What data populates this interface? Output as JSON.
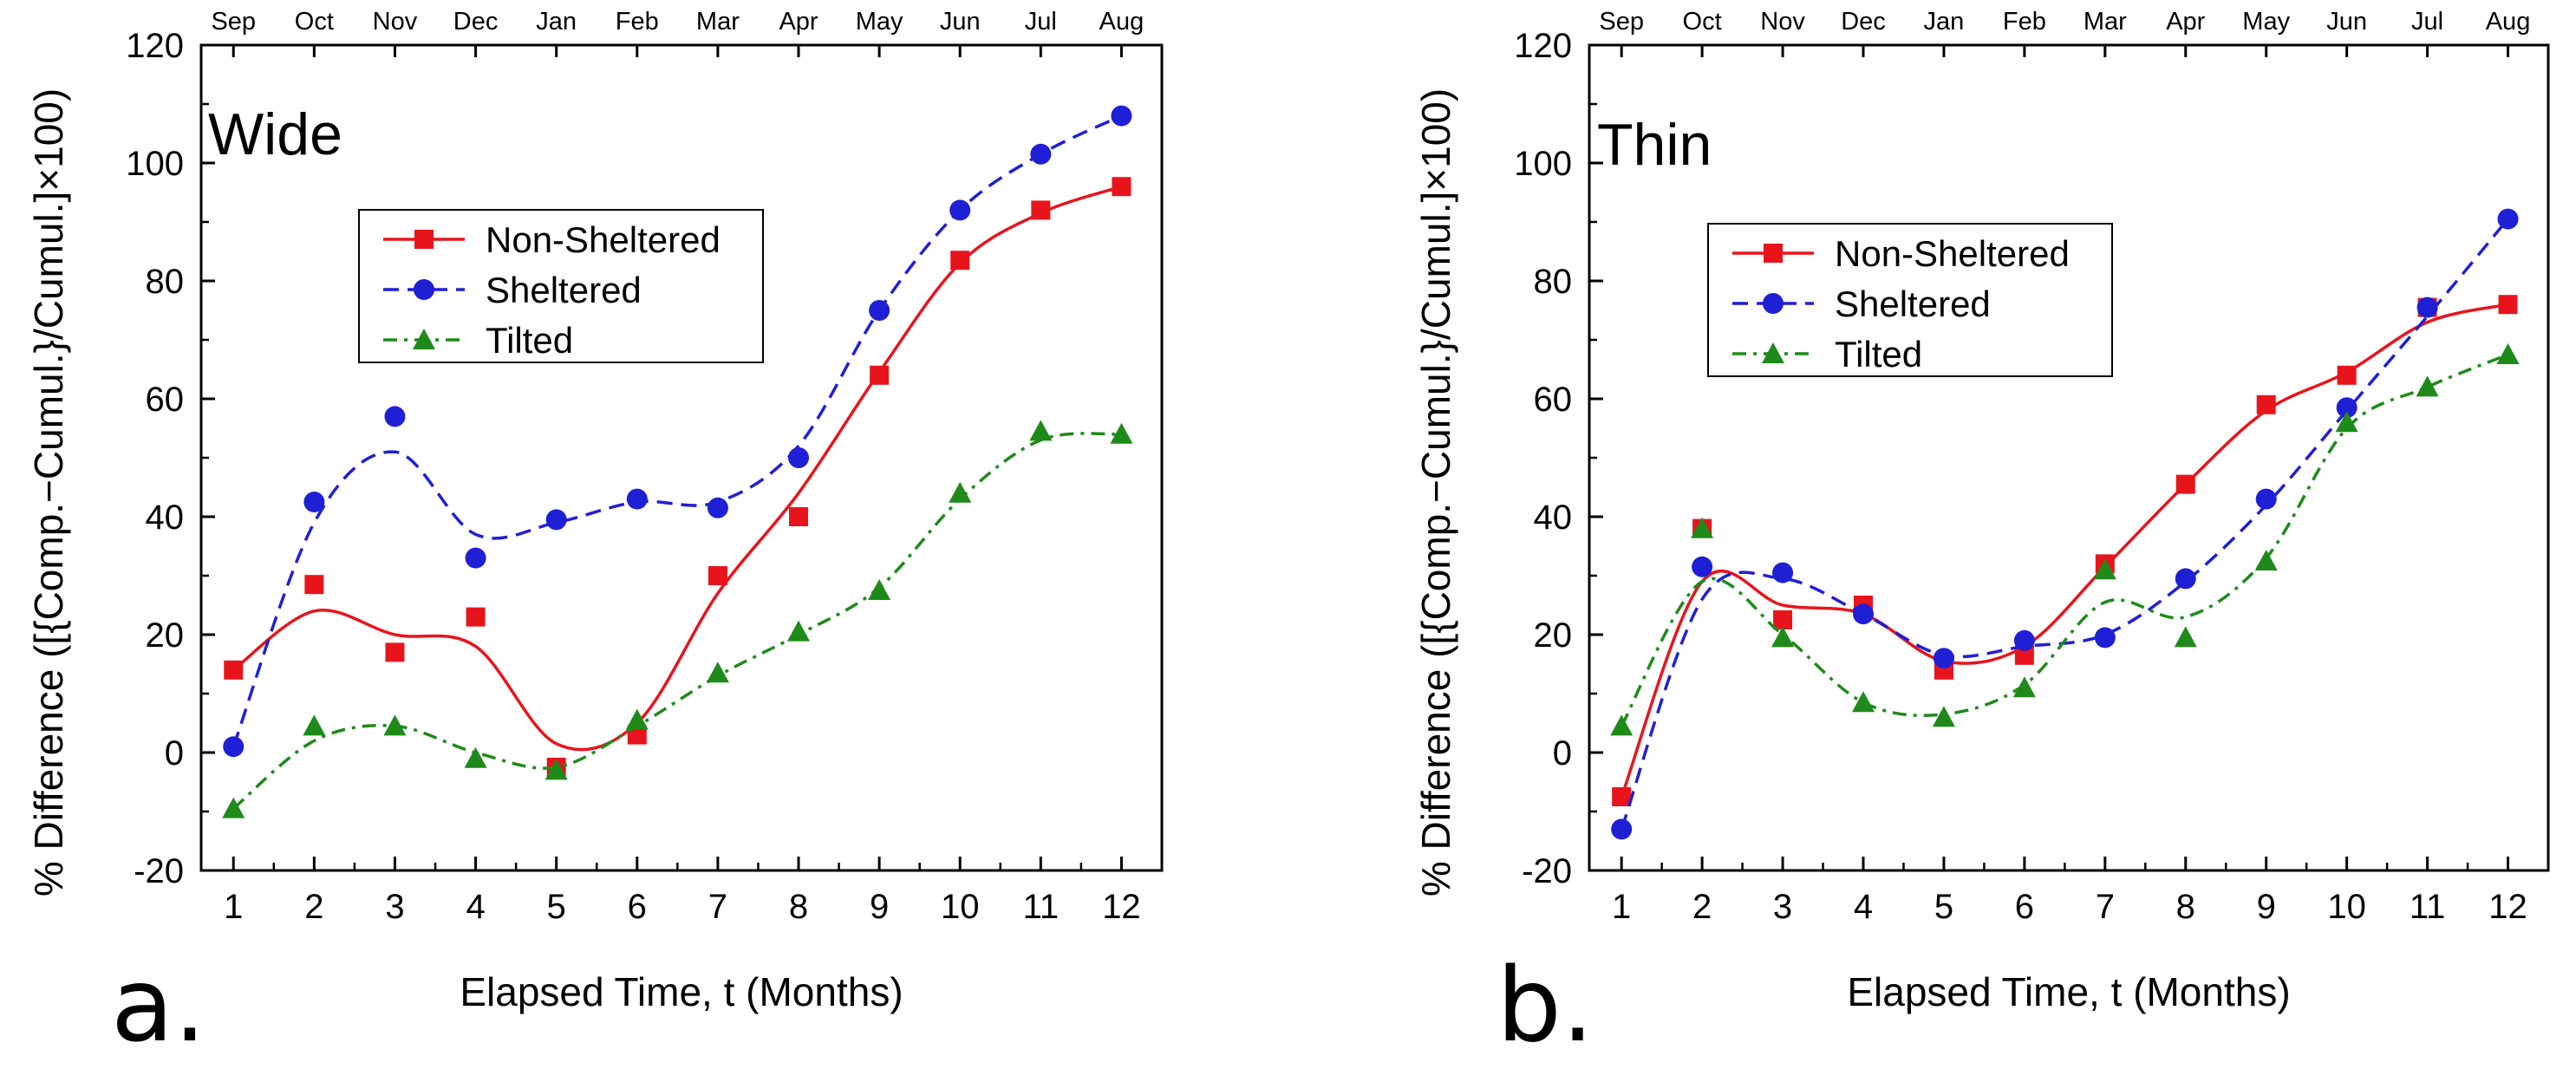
{
  "chart_data": [
    {
      "type": "line",
      "panel_letter": "a.",
      "title": "Wide",
      "xlabel": "Elapsed Time, t (Months)",
      "ylabel": "% Difference ([{Comp.−Cumul.}/Cumul.]×100)",
      "ylim": [
        -20,
        120
      ],
      "xlim": [
        0.6,
        12.5
      ],
      "yticks": [
        -20,
        0,
        20,
        40,
        60,
        80,
        100,
        120
      ],
      "x": [
        1,
        2,
        3,
        4,
        5,
        6,
        7,
        8,
        9,
        10,
        11,
        12
      ],
      "x_tick_labels": [
        "1",
        "2",
        "3",
        "4",
        "5",
        "6",
        "7",
        "8",
        "9",
        "10",
        "11",
        "12"
      ],
      "top_axis_labels": [
        "Sep",
        "Oct",
        "Nov",
        "Dec",
        "Jan",
        "Feb",
        "Mar",
        "Apr",
        "May",
        "Jun",
        "Jul",
        "Aug"
      ],
      "legend_position": "upper-center",
      "series": [
        {
          "name": "Non-Sheltered",
          "color": "#e8141c",
          "marker": "square",
          "line": "solid",
          "values": [
            14,
            28.5,
            17,
            23,
            -2.5,
            3,
            30,
            40,
            64,
            83.5,
            92,
            96
          ],
          "curve": [
            14,
            24,
            20,
            18,
            1.5,
            5,
            27,
            44,
            64.5,
            83,
            91.5,
            96
          ]
        },
        {
          "name": "Sheltered",
          "color": "#1f1fd6",
          "marker": "circle",
          "line": "dashed",
          "values": [
            1,
            42.5,
            57,
            33,
            39.5,
            43,
            41.5,
            50,
            75,
            92,
            101.5,
            108
          ],
          "curve": [
            1,
            39,
            51,
            37,
            39,
            42.5,
            42.5,
            52,
            75,
            92,
            101.5,
            108
          ]
        },
        {
          "name": "Tilted",
          "color": "#1e8a1a",
          "marker": "triangle",
          "line": "dashdot",
          "values": [
            -9.5,
            4.5,
            4.5,
            -1,
            -3,
            5.5,
            13.5,
            20.5,
            27.5,
            44,
            54.5,
            54
          ],
          "curve": [
            -9.5,
            2,
            4.5,
            0,
            -2.5,
            4.5,
            13,
            20,
            28,
            43,
            53,
            54
          ]
        }
      ]
    },
    {
      "type": "line",
      "panel_letter": "b.",
      "title": "Thin",
      "xlabel": "Elapsed Time, t (Months)",
      "ylabel": "% Difference ([{Comp.−Cumul.}/Cumul.]×100)",
      "ylim": [
        -20,
        120
      ],
      "xlim": [
        0.6,
        12.5
      ],
      "yticks": [
        -20,
        0,
        20,
        40,
        60,
        80,
        100,
        120
      ],
      "x": [
        1,
        2,
        3,
        4,
        5,
        6,
        7,
        8,
        9,
        10,
        11,
        12
      ],
      "x_tick_labels": [
        "1",
        "2",
        "3",
        "4",
        "5",
        "6",
        "7",
        "8",
        "9",
        "10",
        "11",
        "12"
      ],
      "top_axis_labels": [
        "Sep",
        "Oct",
        "Nov",
        "Dec",
        "Jan",
        "Feb",
        "Mar",
        "Apr",
        "May",
        "Jun",
        "Jul",
        "Aug"
      ],
      "legend_position": "upper-center",
      "series": [
        {
          "name": "Non-Sheltered",
          "color": "#e8141c",
          "marker": "square",
          "line": "solid",
          "values": [
            -7.5,
            38,
            22.5,
            25,
            14,
            16.5,
            32,
            45.5,
            59,
            64,
            75.5,
            76
          ],
          "curve": [
            -7.5,
            29,
            25,
            23.5,
            15.5,
            18,
            31.5,
            45.5,
            58,
            64.5,
            73,
            76
          ]
        },
        {
          "name": "Sheltered",
          "color": "#1f1fd6",
          "marker": "circle",
          "line": "dashed",
          "values": [
            -13,
            31.5,
            30.5,
            23.5,
            16,
            19,
            19.5,
            29.5,
            43,
            58.5,
            75.5,
            90.5
          ],
          "curve": [
            -13,
            26,
            29.5,
            23.5,
            16.5,
            18,
            20,
            29,
            42,
            58,
            74,
            90.5
          ]
        },
        {
          "name": "Tilted",
          "color": "#1e8a1a",
          "marker": "triangle",
          "line": "dashdot",
          "values": [
            4.5,
            38,
            19.5,
            8.5,
            6,
            11,
            31,
            19.5,
            32.5,
            56,
            62,
            67.5
          ],
          "curve": [
            4.5,
            29,
            20,
            8.5,
            6.5,
            11.5,
            25.5,
            23,
            33,
            55,
            62,
            67.5
          ]
        }
      ]
    }
  ]
}
